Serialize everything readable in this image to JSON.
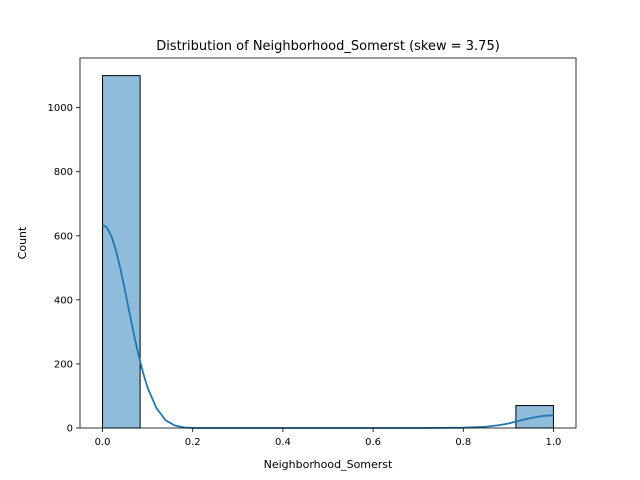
{
  "chart_data": {
    "type": "bar",
    "title": "Distribution of Neighborhood_Somerst (skew = 3.75)",
    "xlabel": "Neighborhood_Somerst",
    "ylabel": "Count",
    "xlim": [
      -0.05,
      1.05
    ],
    "ylim": [
      0,
      1155
    ],
    "x_ticks": [
      0.0,
      0.2,
      0.4,
      0.6,
      0.8,
      1.0
    ],
    "x_tick_labels": [
      "0.0",
      "0.2",
      "0.4",
      "0.6",
      "0.8",
      "1.0"
    ],
    "y_ticks": [
      0,
      200,
      400,
      600,
      800,
      1000
    ],
    "y_tick_labels": [
      "0",
      "200",
      "400",
      "600",
      "800",
      "1000"
    ],
    "bins": [
      {
        "x0": 0.0,
        "x1": 0.0833,
        "count": 1100
      },
      {
        "x0": 0.9167,
        "x1": 1.0,
        "count": 70
      }
    ],
    "kde": {
      "x": [
        0.0,
        0.01,
        0.02,
        0.03,
        0.04,
        0.05,
        0.06,
        0.07,
        0.08,
        0.09,
        0.1,
        0.12,
        0.14,
        0.16,
        0.18,
        0.2,
        0.25,
        0.3,
        0.5,
        0.7,
        0.8,
        0.85,
        0.88,
        0.9,
        0.92,
        0.94,
        0.96,
        0.98,
        1.0
      ],
      "y": [
        635,
        625,
        598,
        553,
        495,
        428,
        358,
        289,
        227,
        172,
        125,
        61,
        24,
        8,
        2,
        0,
        0,
        0,
        0,
        0,
        1,
        4,
        9,
        14,
        21,
        28,
        34,
        38,
        40
      ]
    },
    "grid": false,
    "bar_fill": "#8fbcdb",
    "bar_edge": "#000000",
    "kde_color": "#1f77b4"
  }
}
